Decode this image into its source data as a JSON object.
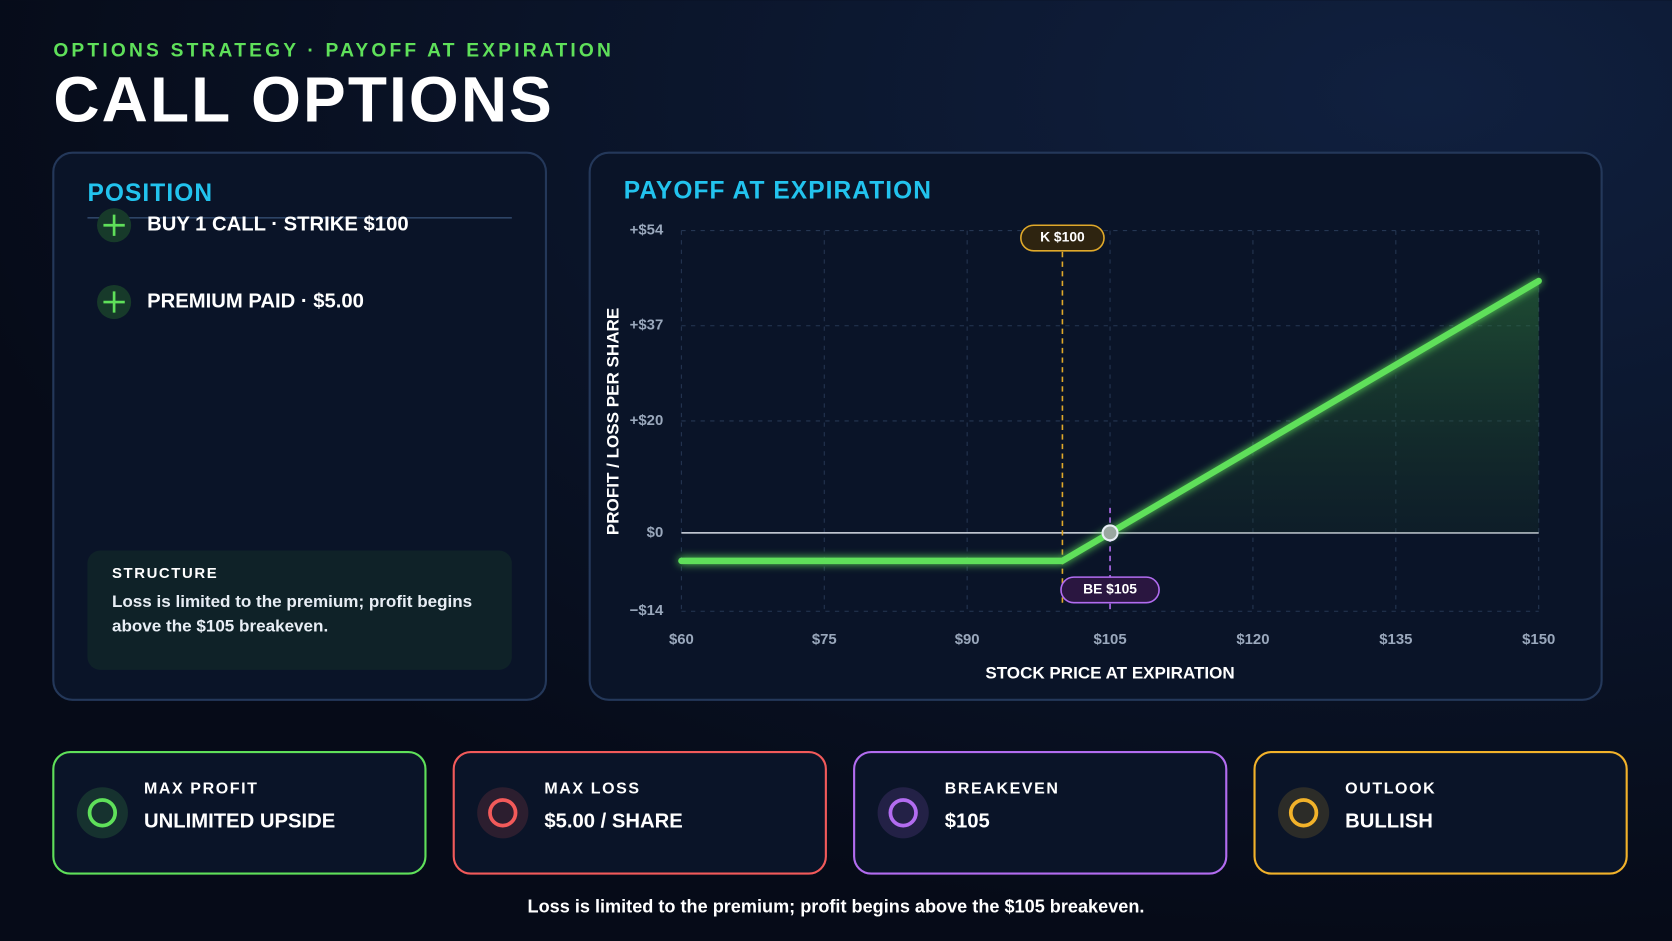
{
  "header": {
    "kicker": "OPTIONS STRATEGY · PAYOFF AT EXPIRATION",
    "title": "CALL OPTIONS"
  },
  "position": {
    "title": "POSITION",
    "items": [
      "BUY 1 CALL · STRIKE $100",
      "PREMIUM PAID · $5.00"
    ],
    "structure": {
      "title": "STRUCTURE",
      "text": "Loss is limited to the premium; profit begins above the $105 breakeven."
    }
  },
  "chart_data": {
    "type": "line",
    "title": "PAYOFF AT EXPIRATION",
    "x_label": "STOCK PRICE AT EXPIRATION",
    "y_label": "PROFIT / LOSS PER SHARE",
    "x": [
      60,
      100,
      150
    ],
    "values": [
      -5,
      -5,
      45
    ],
    "color": "#5fe05a",
    "xlim": [
      60,
      150
    ],
    "xticks": [
      {
        "value": 60,
        "label": "$60"
      },
      {
        "value": 75,
        "label": "$75"
      },
      {
        "value": 90,
        "label": "$90"
      },
      {
        "value": 105,
        "label": "$105"
      },
      {
        "value": 120,
        "label": "$120"
      },
      {
        "value": 135,
        "label": "$135"
      },
      {
        "value": 150,
        "label": "$150"
      }
    ],
    "ylim": [
      -14,
      54
    ],
    "yticks": [
      {
        "value": -14,
        "label": "−$14"
      },
      {
        "value": 0,
        "label": "$0"
      },
      {
        "value": 20,
        "label": "+$20"
      },
      {
        "value": 37,
        "label": "+$37"
      },
      {
        "value": 54,
        "label": "+$54"
      }
    ],
    "grid": true,
    "annotations": [
      {
        "text": "K $100",
        "x": 100,
        "color": "#e0a92a"
      },
      {
        "text": "BE $105",
        "x": 105,
        "color": "#b26cf0"
      }
    ]
  },
  "cards": [
    {
      "label": "MAX PROFIT",
      "value": "UNLIMITED UPSIDE",
      "color": "#5fe05a"
    },
    {
      "label": "MAX LOSS",
      "value": "$5.00 / SHARE",
      "color": "#f25a5a"
    },
    {
      "label": "BREAKEVEN",
      "value": "$105",
      "color": "#b26cf0"
    },
    {
      "label": "OUTLOOK",
      "value": "BULLISH",
      "color": "#f2b22a"
    }
  ],
  "footer": "Loss is limited to the premium; profit begins above the $105 breakeven."
}
